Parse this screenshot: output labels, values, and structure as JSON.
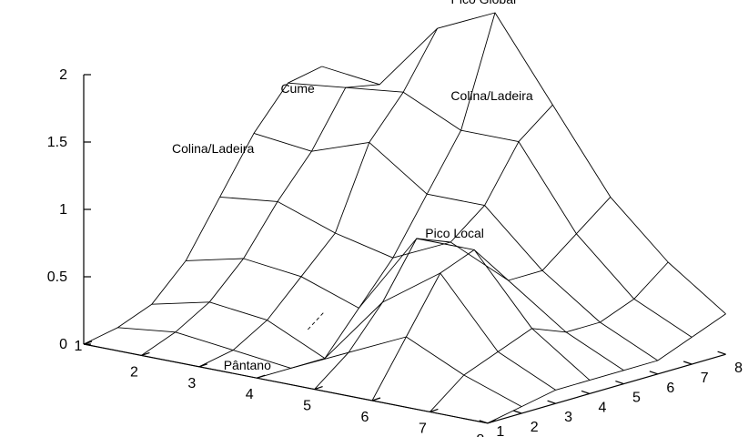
{
  "chart_data": {
    "type": "surface",
    "title": "",
    "x_ticks": [
      "1",
      "2",
      "3",
      "4",
      "5",
      "6",
      "7",
      "8"
    ],
    "y_ticks": [
      "1",
      "2",
      "3",
      "4",
      "5",
      "6",
      "7",
      "8"
    ],
    "z_ticks": [
      "0",
      "0.5",
      "1",
      "1.5",
      "2"
    ],
    "zlim": [
      0,
      2
    ],
    "grid_x": [
      1,
      2,
      3,
      4,
      5,
      6,
      7,
      8
    ],
    "grid_y": [
      1,
      2,
      3,
      4,
      5,
      6,
      7,
      8
    ],
    "z": [
      [
        0.0,
        0.05,
        0.15,
        0.4,
        0.8,
        1.2,
        1.5,
        1.55
      ],
      [
        0.0,
        0.1,
        0.25,
        0.5,
        0.85,
        1.15,
        1.55,
        1.5
      ],
      [
        0.0,
        0.05,
        0.2,
        0.45,
        0.7,
        1.3,
        1.6,
        2.0
      ],
      [
        0.0,
        0.0,
        0.0,
        0.3,
        0.6,
        1.0,
        1.4,
        2.2
      ],
      [
        0.0,
        0.2,
        0.5,
        0.9,
        0.8,
        1.0,
        1.4,
        1.6
      ],
      [
        0.0,
        0.4,
        0.8,
        0.9,
        0.6,
        0.6,
        0.8,
        1.0
      ],
      [
        0.0,
        0.2,
        0.3,
        0.4,
        0.3,
        0.3,
        0.4,
        0.6
      ],
      [
        0.0,
        0.05,
        0.1,
        0.1,
        0.1,
        0.1,
        0.2,
        0.3
      ]
    ],
    "annotations": [
      {
        "text": "Pico Global",
        "x": 3.8,
        "y": 8.0,
        "z": 2.25
      },
      {
        "text": "Colina/Ladeira",
        "x": 4.3,
        "y": 7.4,
        "z": 1.62
      },
      {
        "text": "Cume",
        "x": 1.7,
        "y": 6.1,
        "z": 1.55
      },
      {
        "text": "Colina/Ladeira",
        "x": 1.0,
        "y": 4.8,
        "z": 1.14
      },
      {
        "text": "Pico Local",
        "x": 5.6,
        "y": 4.1,
        "z": 0.95
      },
      {
        "text": "Pântano",
        "x": 3.6,
        "y": 1.4,
        "z": 0.0
      }
    ]
  }
}
